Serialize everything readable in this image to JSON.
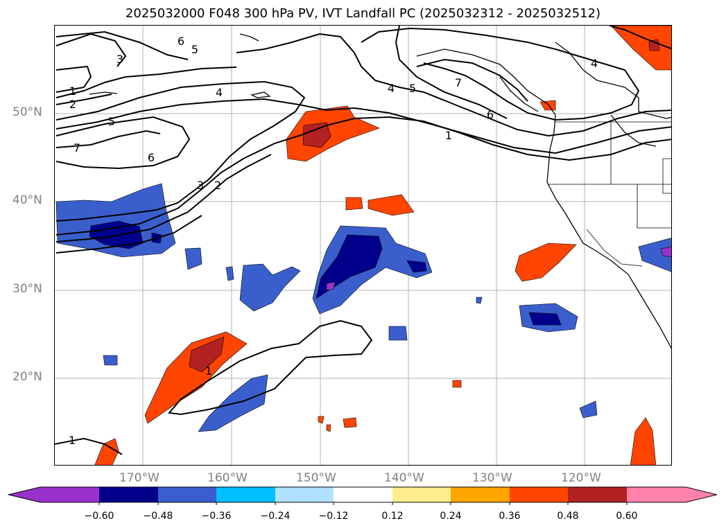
{
  "title": "2025032000 F048 300 hPa PV, IVT Landfall PC (2025032312 - 2025032512)",
  "lat_labels": [
    "50°N",
    "40°N",
    "30°N",
    "20°N"
  ],
  "lon_labels": [
    "170°W",
    "160°W",
    "150°W",
    "140°W",
    "130°W",
    "120°W"
  ],
  "contour_labels": [
    "6",
    "5",
    "3",
    "1",
    "2",
    "4",
    "5",
    "7",
    "6",
    "3",
    "2",
    "4",
    "5",
    "7",
    "6",
    "1",
    "4",
    "1",
    "1"
  ],
  "colorbar": {
    "ticks": [
      "−0.60",
      "−0.48",
      "−0.36",
      "−0.24",
      "−0.12",
      "0.12",
      "0.24",
      "0.36",
      "0.48",
      "0.60"
    ],
    "colors": [
      "#9932cc",
      "#00008b",
      "#3a5fcd",
      "#00bfff",
      "#b0e2ff",
      "#ffffff",
      "#ffec8b",
      "#ffa500",
      "#ff4500",
      "#b22222",
      "#ff82ab"
    ]
  }
}
